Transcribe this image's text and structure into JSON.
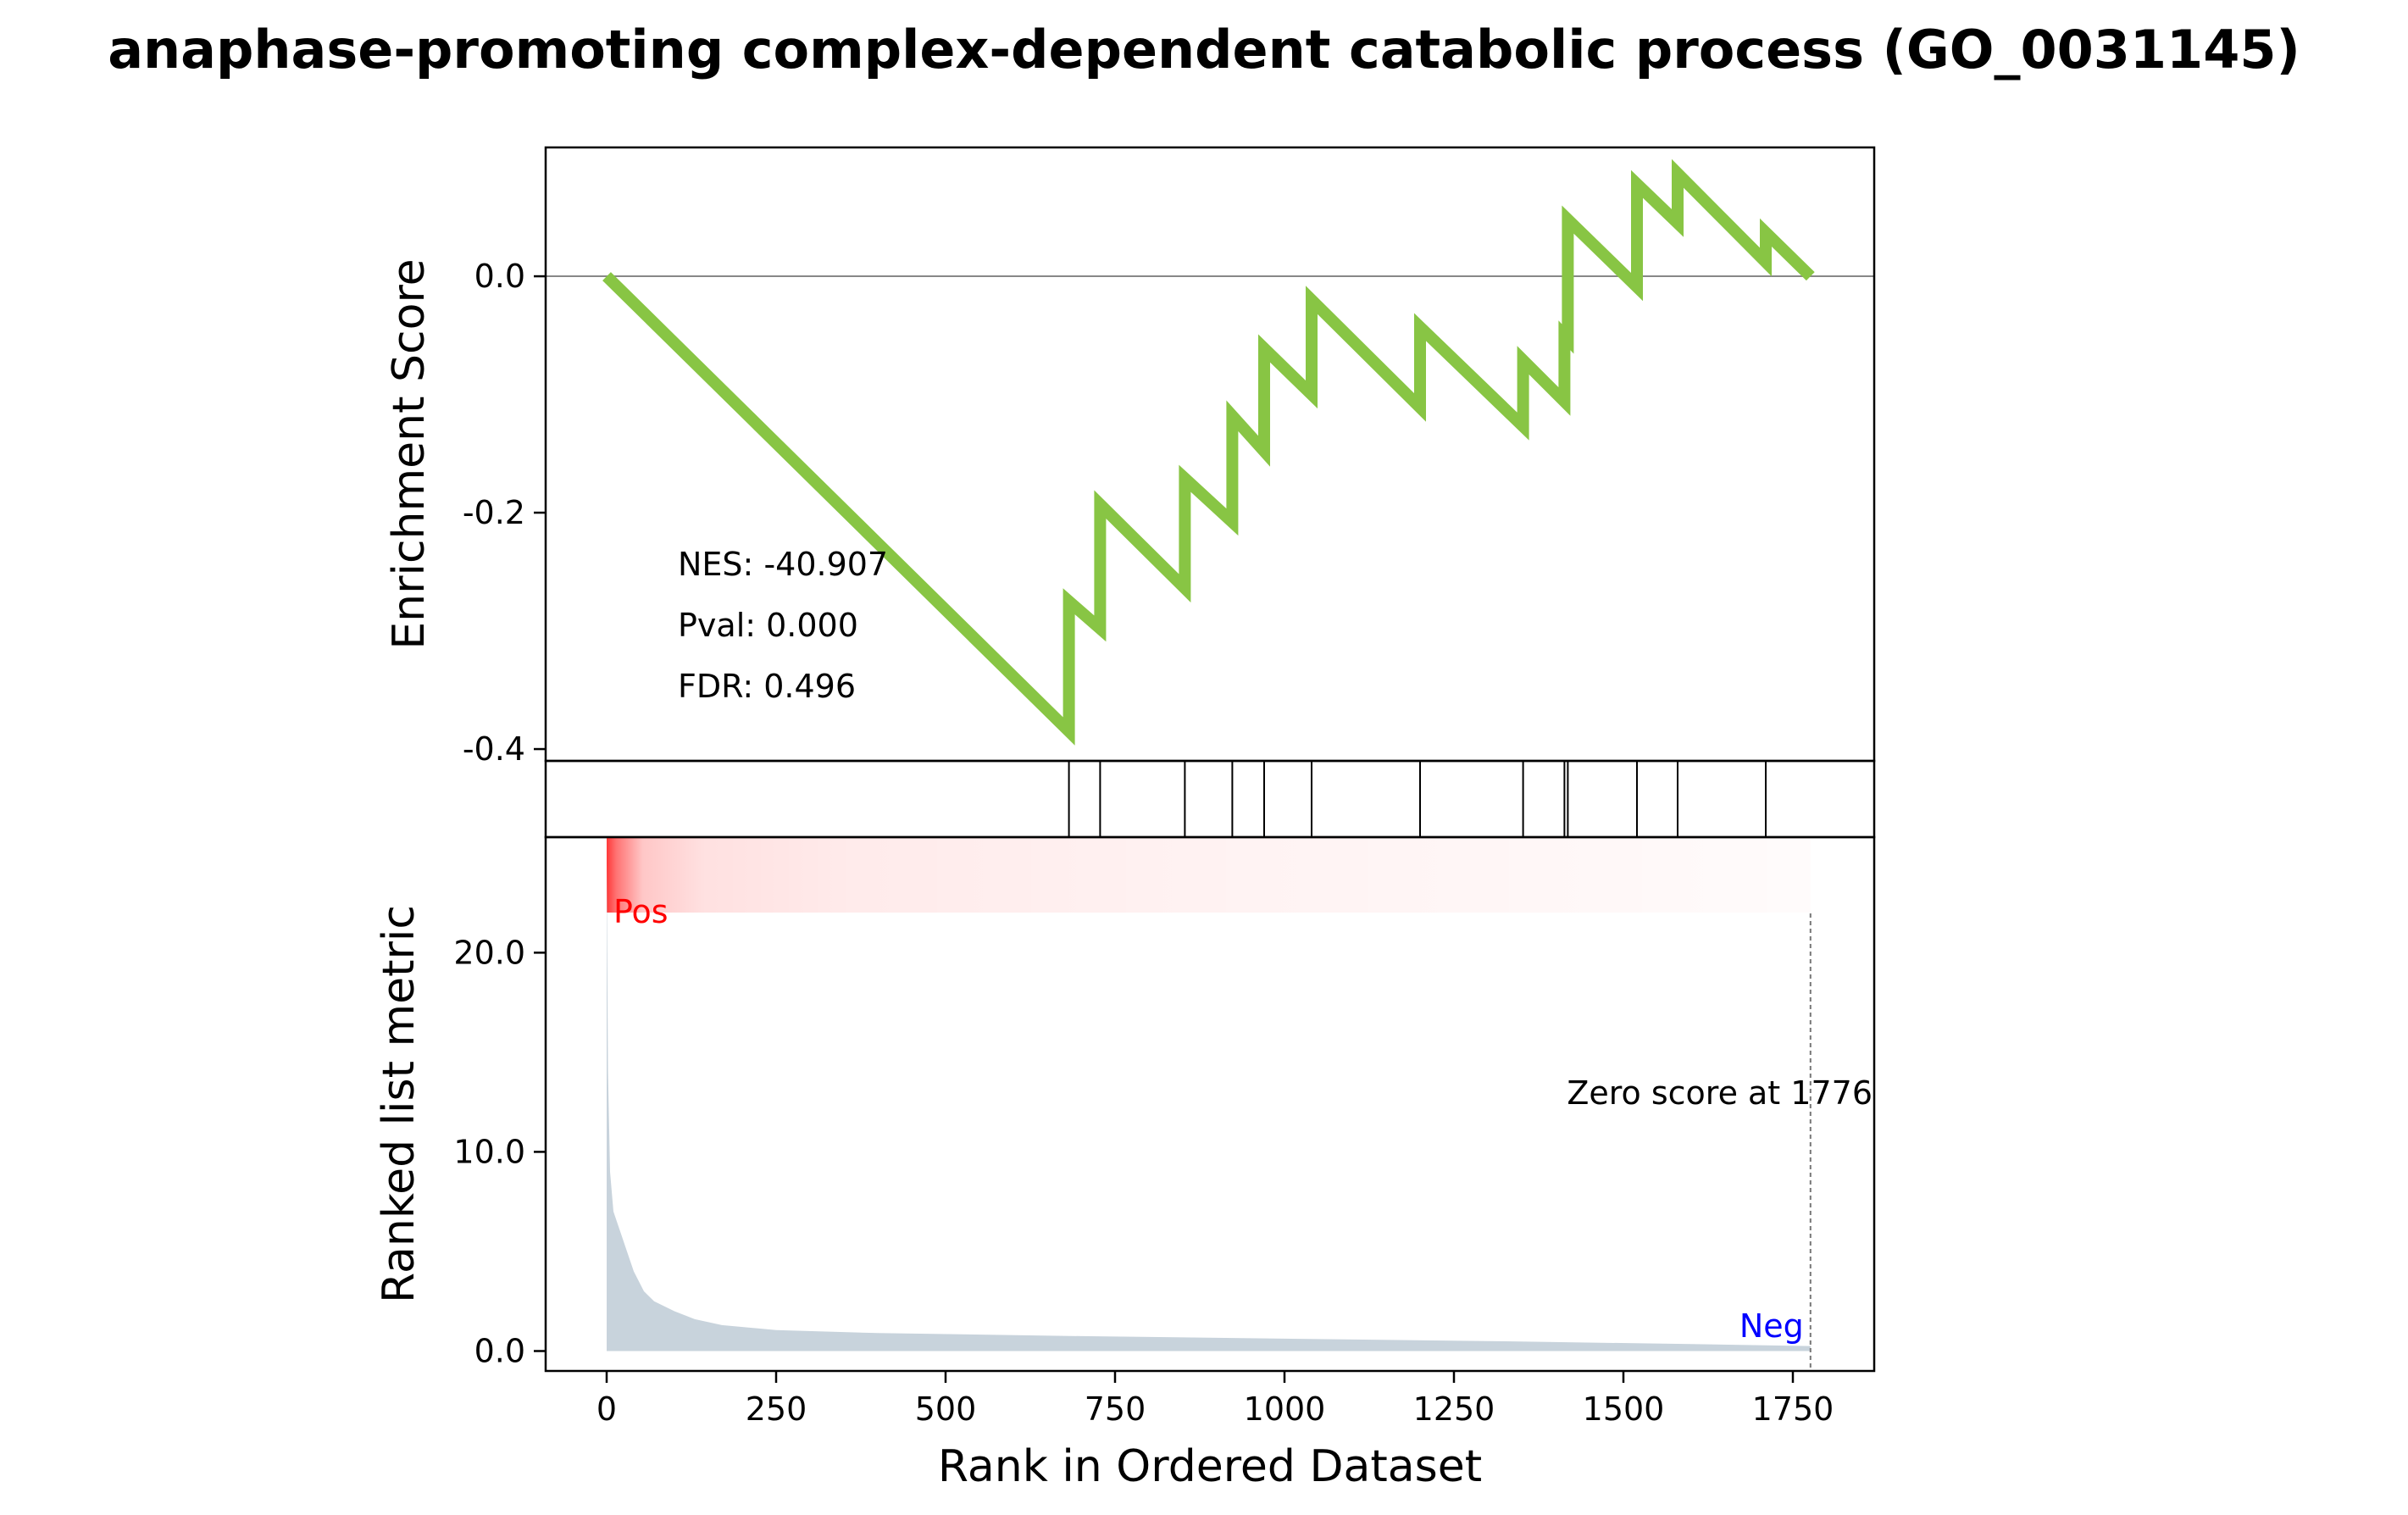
{
  "chart_data": {
    "type": "line",
    "title": "anaphase-promoting complex-dependent catabolic process (GO_0031145)",
    "xlabel": "Rank in Ordered Dataset",
    "x_ticks": [
      "0",
      "250",
      "500",
      "750",
      "1000",
      "1250",
      "1500",
      "1750"
    ],
    "x_tick_values": [
      0,
      250,
      500,
      750,
      1000,
      1250,
      1500,
      1750
    ],
    "xlim": [
      -90,
      1870
    ],
    "enrichment": {
      "ylabel": "Enrichment Score",
      "y_ticks": [
        "0.0",
        "-0.2",
        "-0.4"
      ],
      "y_tick_values": [
        0.0,
        -0.2,
        -0.4
      ],
      "ylim": [
        -0.41,
        0.109
      ],
      "color": "#88c544",
      "zero_line": true,
      "points": [
        [
          0,
          0.0
        ],
        [
          682,
          -0.385
        ],
        [
          682,
          -0.275
        ],
        [
          728,
          -0.298
        ],
        [
          728,
          -0.193
        ],
        [
          853,
          -0.264
        ],
        [
          853,
          -0.171
        ],
        [
          923,
          -0.208
        ],
        [
          923,
          -0.118
        ],
        [
          970,
          -0.148
        ],
        [
          970,
          -0.061
        ],
        [
          1040,
          -0.1
        ],
        [
          1040,
          -0.02
        ],
        [
          1200,
          -0.111
        ],
        [
          1200,
          -0.043
        ],
        [
          1352,
          -0.127
        ],
        [
          1352,
          -0.071
        ],
        [
          1413,
          -0.106
        ],
        [
          1413,
          -0.05
        ],
        [
          1418,
          -0.053
        ],
        [
          1418,
          0.048
        ],
        [
          1520,
          -0.009
        ],
        [
          1520,
          0.078
        ],
        [
          1580,
          0.045
        ],
        [
          1580,
          0.087
        ],
        [
          1710,
          0.012
        ],
        [
          1710,
          0.037
        ],
        [
          1776,
          0.0
        ]
      ]
    },
    "hits": [
      682,
      728,
      853,
      923,
      970,
      1040,
      1200,
      1352,
      1413,
      1418,
      1520,
      1580,
      1710
    ],
    "ranked_metric": {
      "ylabel": "Ranked list metric",
      "y_ticks": [
        "0.0",
        "10.0",
        "20.0"
      ],
      "y_tick_values": [
        0,
        10,
        20
      ],
      "ylim": [
        -1.0,
        25.8
      ],
      "fill_color": "#c8d3dc",
      "profile": [
        [
          0,
          24.5
        ],
        [
          2,
          14.0
        ],
        [
          5,
          9.0
        ],
        [
          10,
          7.0
        ],
        [
          20,
          6.0
        ],
        [
          30,
          5.0
        ],
        [
          40,
          4.0
        ],
        [
          55,
          3.0
        ],
        [
          70,
          2.5
        ],
        [
          100,
          2.0
        ],
        [
          130,
          1.6
        ],
        [
          170,
          1.3
        ],
        [
          250,
          1.05
        ],
        [
          400,
          0.9
        ],
        [
          700,
          0.75
        ],
        [
          1000,
          0.62
        ],
        [
          1300,
          0.5
        ],
        [
          1600,
          0.35
        ],
        [
          1776,
          0.25
        ]
      ],
      "pos_label": "Pos",
      "neg_label": "Neg",
      "pos_color": "#ff0000",
      "neg_color": "#0000ff",
      "zero_score_label": "Zero score at 1776",
      "zero_score_rank": 1776
    },
    "heatmap_color": "#ff0000",
    "stats": {
      "nes": "NES: -40.907",
      "pval": "Pval: 0.000",
      "fdr": "FDR: 0.496"
    }
  }
}
